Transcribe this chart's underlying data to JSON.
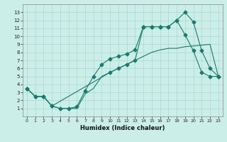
{
  "xlabel": "Humidex (Indice chaleur)",
  "bg_color": "#cceee8",
  "line_color": "#1a7a6e",
  "grid_color": "#aad6d0",
  "xlim": [
    -0.5,
    23.5
  ],
  "ylim": [
    0,
    14
  ],
  "xticks": [
    0,
    1,
    2,
    3,
    4,
    5,
    6,
    7,
    8,
    9,
    10,
    11,
    12,
    13,
    14,
    15,
    16,
    17,
    18,
    19,
    20,
    21,
    22,
    23
  ],
  "yticks": [
    1,
    2,
    3,
    4,
    5,
    6,
    7,
    8,
    9,
    10,
    11,
    12,
    13
  ],
  "line1_x": [
    0,
    1,
    2,
    3,
    4,
    5,
    6,
    7,
    8,
    9,
    10,
    11,
    12,
    13,
    14,
    15,
    16,
    17,
    18,
    19,
    20,
    21,
    22,
    23
  ],
  "line1_y": [
    3.5,
    2.5,
    2.5,
    1.3,
    1.0,
    1.0,
    1.0,
    2.8,
    3.5,
    5.0,
    5.5,
    6.0,
    6.5,
    7.0,
    7.5,
    8.0,
    8.3,
    8.5,
    8.5,
    8.7,
    8.8,
    8.9,
    9.0,
    5.0
  ],
  "line2_x": [
    0,
    1,
    2,
    3,
    4,
    5,
    6,
    7,
    8,
    9,
    10,
    11,
    12,
    13,
    14,
    15,
    16,
    17,
    18,
    19,
    20,
    21,
    22,
    23
  ],
  "line2_y": [
    3.5,
    2.5,
    2.5,
    1.3,
    1.0,
    1.0,
    1.2,
    3.2,
    5.0,
    6.5,
    7.2,
    7.5,
    7.8,
    8.3,
    11.2,
    11.2,
    11.2,
    11.2,
    12.0,
    13.0,
    11.8,
    8.2,
    6.0,
    5.0
  ],
  "line3_x": [
    0,
    1,
    2,
    3,
    10,
    11,
    12,
    13,
    14,
    15,
    16,
    17,
    18,
    19,
    20,
    21,
    22,
    23
  ],
  "line3_y": [
    3.5,
    2.5,
    2.5,
    1.3,
    5.5,
    6.0,
    6.5,
    7.0,
    11.2,
    11.2,
    11.2,
    11.2,
    12.0,
    10.2,
    8.2,
    5.5,
    5.0,
    5.0
  ],
  "markersize": 2.5
}
